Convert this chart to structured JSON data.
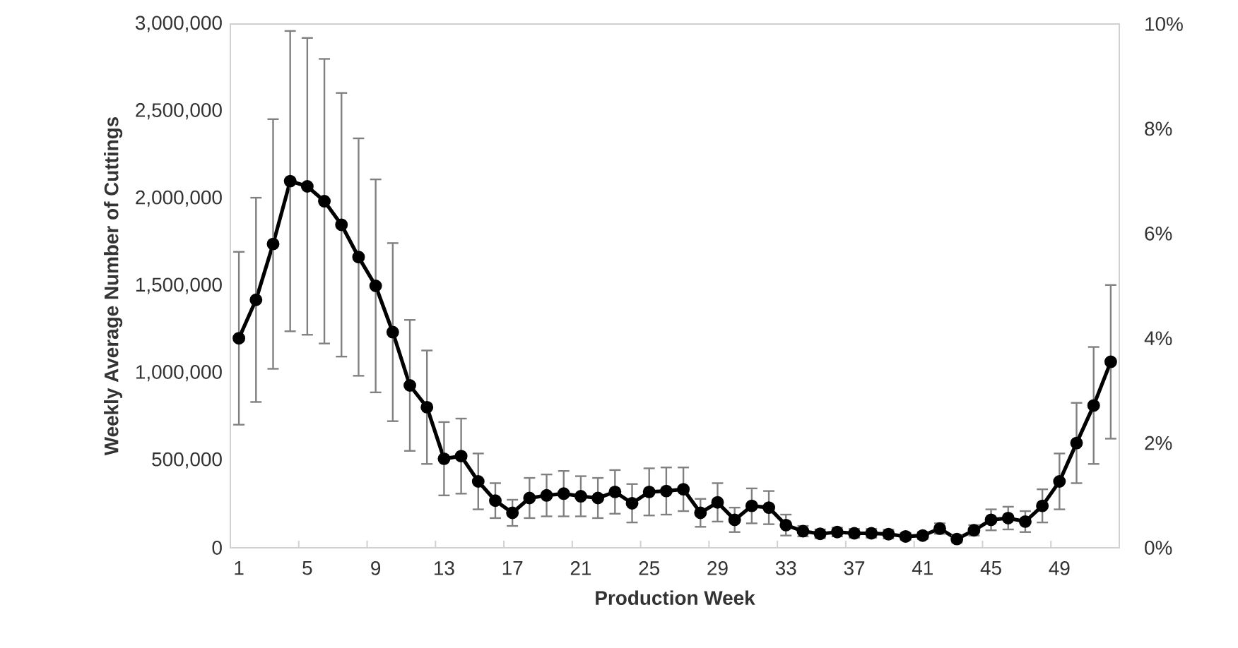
{
  "chart_data": {
    "type": "line",
    "xlabel": "Production Week",
    "ylabel": "Weekly Average Number of Cuttings",
    "categories": [
      "1",
      null,
      null,
      null,
      "5",
      null,
      null,
      null,
      "9",
      null,
      null,
      null,
      "13",
      null,
      null,
      null,
      "17",
      null,
      null,
      null,
      "21",
      null,
      null,
      null,
      "25",
      null,
      null,
      null,
      "29",
      null,
      null,
      null,
      "33",
      null,
      null,
      null,
      "37",
      null,
      null,
      null,
      "41",
      null,
      null,
      null,
      "45",
      null,
      null,
      null,
      "49",
      null,
      null,
      null
    ],
    "series": [
      {
        "color": "#000000",
        "values": [
          1200000,
          1420000,
          1740000,
          2100000,
          2070000,
          1985000,
          1850000,
          1665000,
          1500000,
          1235000,
          930000,
          805000,
          510000,
          525000,
          380000,
          270000,
          200000,
          285000,
          300000,
          310000,
          295000,
          285000,
          320000,
          255000,
          320000,
          325000,
          335000,
          200000,
          260000,
          160000,
          240000,
          230000,
          130000,
          95000,
          80000,
          90000,
          83000,
          83000,
          78000,
          65000,
          70000,
          110000,
          50000,
          100000,
          160000,
          170000,
          150000,
          240000,
          380000,
          600000,
          815000,
          1065000
        ],
        "errors": [
          495000,
          585000,
          715000,
          860000,
          850000,
          815000,
          755000,
          680000,
          610000,
          510000,
          375000,
          325000,
          210000,
          215000,
          160000,
          100000,
          75000,
          115000,
          120000,
          130000,
          115000,
          115000,
          125000,
          110000,
          135000,
          135000,
          125000,
          80000,
          110000,
          70000,
          100000,
          95000,
          60000,
          30000,
          25000,
          25000,
          25000,
          25000,
          25000,
          20000,
          20000,
          30000,
          20000,
          30000,
          60000,
          65000,
          60000,
          95000,
          160000,
          230000,
          335000,
          440000
        ]
      }
    ],
    "ylim": [
      0,
      3000000
    ],
    "yticks": [
      {
        "value": 0,
        "label": "0"
      },
      {
        "value": 500000,
        "label": "500,000"
      },
      {
        "value": 1000000,
        "label": "1,000,000"
      },
      {
        "value": 1500000,
        "label": "1,500,000"
      },
      {
        "value": 2000000,
        "label": "2,000,000"
      },
      {
        "value": 2500000,
        "label": "2,500,000"
      },
      {
        "value": 3000000,
        "label": "3,000,000"
      }
    ],
    "y2lim": [
      0,
      10
    ],
    "y2ticks": [
      {
        "value": 0,
        "label": "0%"
      },
      {
        "value": 2,
        "label": "2%"
      },
      {
        "value": 4,
        "label": "4%"
      },
      {
        "value": 6,
        "label": "6%"
      },
      {
        "value": 8,
        "label": "8%"
      },
      {
        "value": 10,
        "label": "10%"
      }
    ],
    "marker": "circle",
    "line_style": "solid"
  }
}
